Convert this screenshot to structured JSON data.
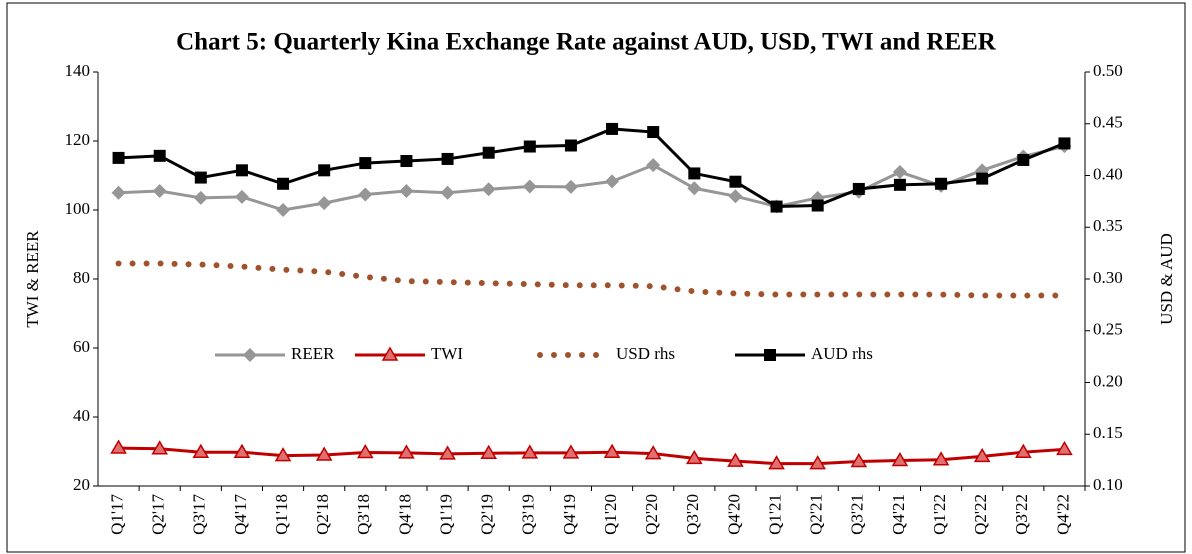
{
  "chart_data": {
    "type": "line",
    "title": "Chart 5: Quarterly Kina Exchange Rate against AUD, USD, TWI and REER",
    "y_label": "TWI & REER",
    "y2_label": "USD & AUD",
    "categories": [
      "Q1'17",
      "Q2'17",
      "Q3'17",
      "Q4'17",
      "Q1'18",
      "Q2'18",
      "Q3'18",
      "Q4'18",
      "Q1'19",
      "Q2'19",
      "Q3'19",
      "Q4'19",
      "Q1'20",
      "Q2'20",
      "Q3'20",
      "Q4'20",
      "Q1'21",
      "Q2'21",
      "Q3'21",
      "Q4'21",
      "Q1'22",
      "Q2'22",
      "Q3'22",
      "Q4'22"
    ],
    "ylim": [
      20,
      140
    ],
    "yticks": [
      20,
      40,
      60,
      80,
      100,
      120,
      140
    ],
    "y2lim": [
      0.1,
      0.5
    ],
    "y2ticks": [
      {
        "value": 0.1,
        "label": "0.10"
      },
      {
        "value": 0.15,
        "label": "0.15"
      },
      {
        "value": 0.2,
        "label": "0.20"
      },
      {
        "value": 0.25,
        "label": "0.25"
      },
      {
        "value": 0.3,
        "label": "0.30"
      },
      {
        "value": 0.35,
        "label": "0.35"
      },
      {
        "value": 0.4,
        "label": "0.40"
      },
      {
        "value": 0.45,
        "label": "0.45"
      },
      {
        "value": 0.5,
        "label": "0.50"
      }
    ],
    "grid": false,
    "series": [
      {
        "name": "REER",
        "color": "#969696",
        "marker": "diamond",
        "line_style": "solid",
        "axis": "y",
        "values": [
          105,
          105.5,
          103.5,
          103.8,
          100,
          102,
          104.5,
          105.5,
          105,
          106,
          106.8,
          106.7,
          108.3,
          113,
          106.3,
          104,
          101,
          103.5,
          105.3,
          111,
          107,
          111.5,
          115.5,
          118.5
        ]
      },
      {
        "name": "TWI",
        "color": "#c00000",
        "marker": "triangle",
        "line_style": "solid",
        "axis": "y",
        "values": [
          31,
          30.8,
          29.8,
          29.8,
          28.8,
          29,
          29.7,
          29.6,
          29.3,
          29.5,
          29.6,
          29.6,
          29.8,
          29.4,
          28,
          27.2,
          26.5,
          26.5,
          27.1,
          27.4,
          27.6,
          28.6,
          29.8,
          30.6
        ]
      },
      {
        "name": "USD rhs",
        "color": "#a0522d",
        "marker": "none",
        "line_style": "dotted",
        "axis": "y2",
        "values": [
          0.315,
          0.315,
          0.314,
          0.312,
          0.309,
          0.307,
          0.302,
          0.298,
          0.297,
          0.296,
          0.295,
          0.294,
          0.294,
          0.293,
          0.288,
          0.286,
          0.285,
          0.285,
          0.285,
          0.285,
          0.285,
          0.284,
          0.284,
          0.284
        ]
      },
      {
        "name": "AUD rhs",
        "color": "#000000",
        "marker": "square",
        "line_style": "solid",
        "axis": "y2",
        "values": [
          0.417,
          0.419,
          0.398,
          0.405,
          0.392,
          0.405,
          0.412,
          0.414,
          0.416,
          0.422,
          0.428,
          0.429,
          0.445,
          0.442,
          0.402,
          0.394,
          0.37,
          0.371,
          0.387,
          0.391,
          0.392,
          0.397,
          0.415,
          0.431
        ]
      }
    ]
  }
}
